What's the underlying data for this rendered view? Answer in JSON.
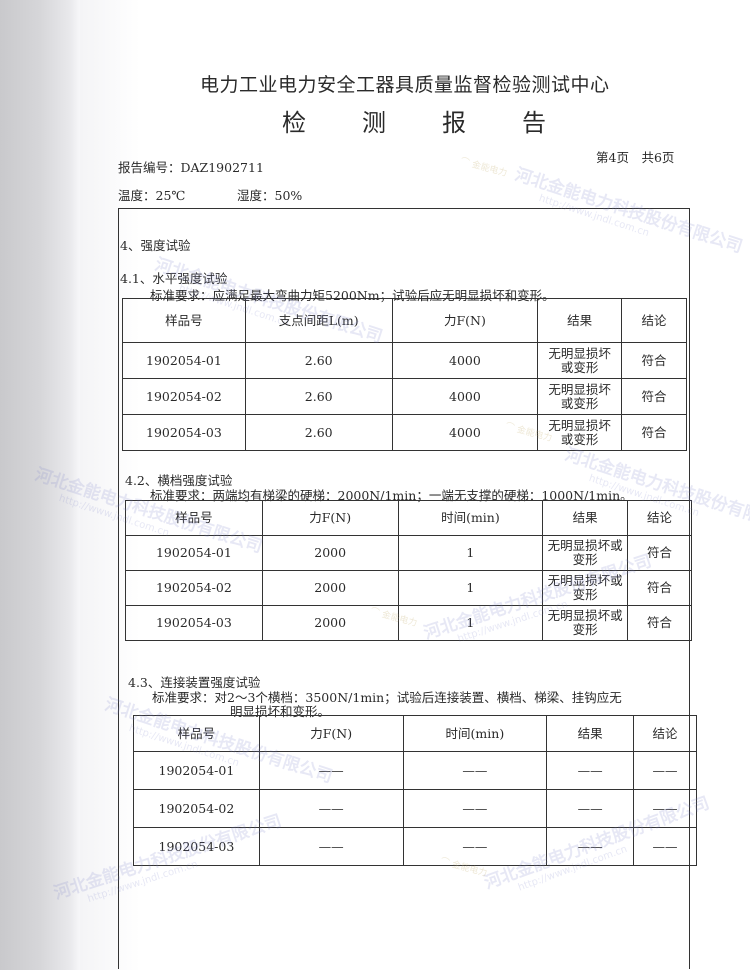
{
  "header": {
    "org": "电力工业电力安全工器具质量监督检验测试中心",
    "title_chars": [
      "检",
      "测",
      "报",
      "告"
    ],
    "page_info": "第4页　共6页",
    "report_no": "报告编号：DAZ1902711",
    "temperature": "温度：25℃",
    "humidity": "湿度：50%"
  },
  "section": {
    "title": "4、强度试验"
  },
  "s41": {
    "title": "4.1、水平强度试验",
    "requirement": "标准要求：应满足最大弯曲力矩5200Nm；试验后应无明显损坏和变形。",
    "columns": [
      "样品号",
      "支点间距L(m)",
      "力F(N)",
      "结果",
      "结论"
    ],
    "rows": [
      [
        "1902054-01",
        "2.60",
        "4000",
        "无明显损坏或变形",
        "符合"
      ],
      [
        "1902054-02",
        "2.60",
        "4000",
        "无明显损坏或变形",
        "符合"
      ],
      [
        "1902054-03",
        "2.60",
        "4000",
        "无明显损坏或变形",
        "符合"
      ]
    ]
  },
  "s42": {
    "title": "4.2、横档强度试验",
    "requirement": "标准要求：两端均有梯梁的硬梯：2000N/1min；一端无支撑的硬梯：1000N/1min。",
    "columns": [
      "样品号",
      "力F(N)",
      "时间(min)",
      "结果",
      "结论"
    ],
    "rows": [
      [
        "1902054-01",
        "2000",
        "1",
        "无明显损坏或变形",
        "符合"
      ],
      [
        "1902054-02",
        "2000",
        "1",
        "无明显损坏或变形",
        "符合"
      ],
      [
        "1902054-03",
        "2000",
        "1",
        "无明显损坏或变形",
        "符合"
      ]
    ]
  },
  "s43": {
    "title": "4.3、连接装置强度试验",
    "requirement_line1": "标准要求：对2～3个横档：3500N/1min；试验后连接装置、横档、梯梁、挂钩应无",
    "requirement_line2": "明显损坏和变形。",
    "columns": [
      "样品号",
      "力F(N)",
      "时间(min)",
      "结果",
      "结论"
    ],
    "rows": [
      [
        "1902054-01",
        "——",
        "——",
        "——",
        "——"
      ],
      [
        "1902054-02",
        "——",
        "——",
        "——",
        "——"
      ],
      [
        "1902054-03",
        "——",
        "——",
        "——",
        "——"
      ]
    ]
  },
  "watermark": {
    "company": "河北金能电力科技股份有限公司",
    "url": "http://www.jndl.com.cn",
    "logo": "金能电力"
  }
}
